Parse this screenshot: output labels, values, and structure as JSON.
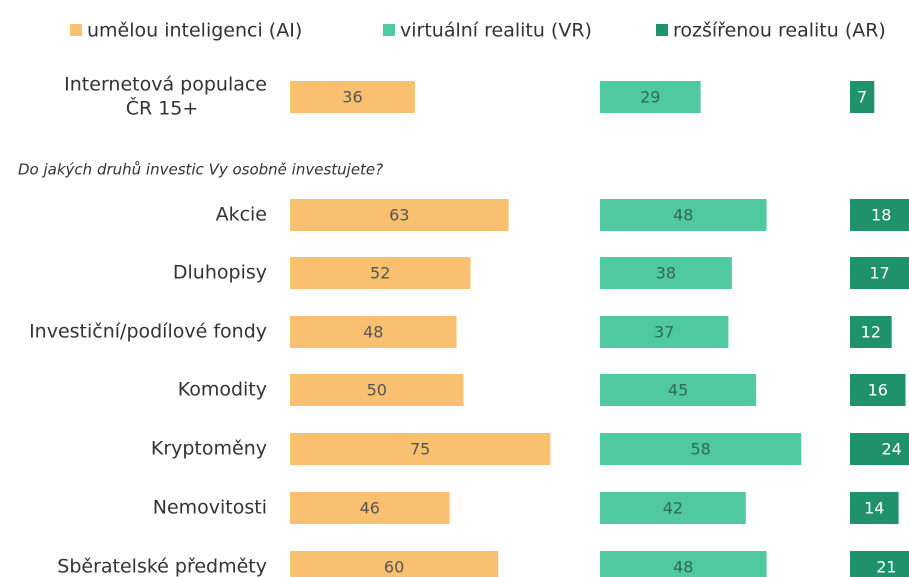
{
  "chart_data": {
    "type": "bar",
    "annotation": "Do jakých druhů investic Vy osobně investujete?",
    "categories": [
      [
        "Internetová populace",
        "ČR 15+"
      ],
      "Akcie",
      "Dluhopisy",
      "Investiční/podílové fondy",
      "Komodity",
      "Kryptoměny",
      "Nemovitosti",
      "Sběratelské předměty"
    ],
    "series": [
      {
        "name": "umělou inteligenci (AI)",
        "color": "#f8c070",
        "values": [
          36,
          63,
          52,
          48,
          50,
          75,
          46,
          60
        ]
      },
      {
        "name": "virtuální realitu (VR)",
        "color": "#50c8a0",
        "values": [
          29,
          48,
          38,
          37,
          45,
          58,
          42,
          48
        ]
      },
      {
        "name": "rozšířenou realitu (AR)",
        "color": "#1f916b",
        "values": [
          7,
          18,
          17,
          12,
          16,
          24,
          14,
          21
        ]
      }
    ],
    "legend": "top"
  }
}
